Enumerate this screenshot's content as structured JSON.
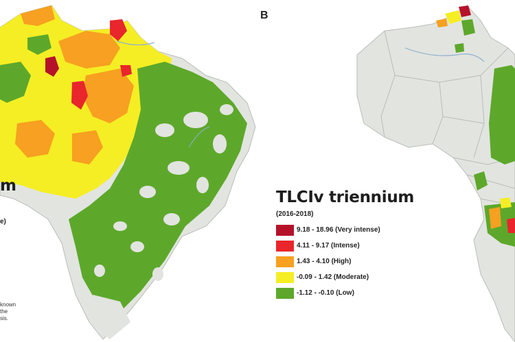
{
  "panel_b_label": "B",
  "legend": {
    "title": "TLCIv triennium",
    "period": "(2016-2018)",
    "items": [
      {
        "label": "9.18 - 18.96 (Very intense)",
        "color": "#b5122a"
      },
      {
        "label": "4.11 - 9.17 (Intense)",
        "color": "#e8262b"
      },
      {
        "label": "1.43 - 4.10 (High)",
        "color": "#f7a021"
      },
      {
        "label": "-0.09 - 1.42 (Moderate)",
        "color": "#f5ee24"
      },
      {
        "label": "-1.12 - -0.10 (Low)",
        "color": "#5da82b"
      }
    ]
  },
  "left_panel_fragments": {
    "title_fragment": "m",
    "subtitle_fragment": "e)",
    "note_lines": [
      "known",
      "the",
      "sis."
    ]
  },
  "map_colors": {
    "no_data": "#e2e4e0",
    "border": "#b9bdb6",
    "river": "#8fb0cc"
  }
}
